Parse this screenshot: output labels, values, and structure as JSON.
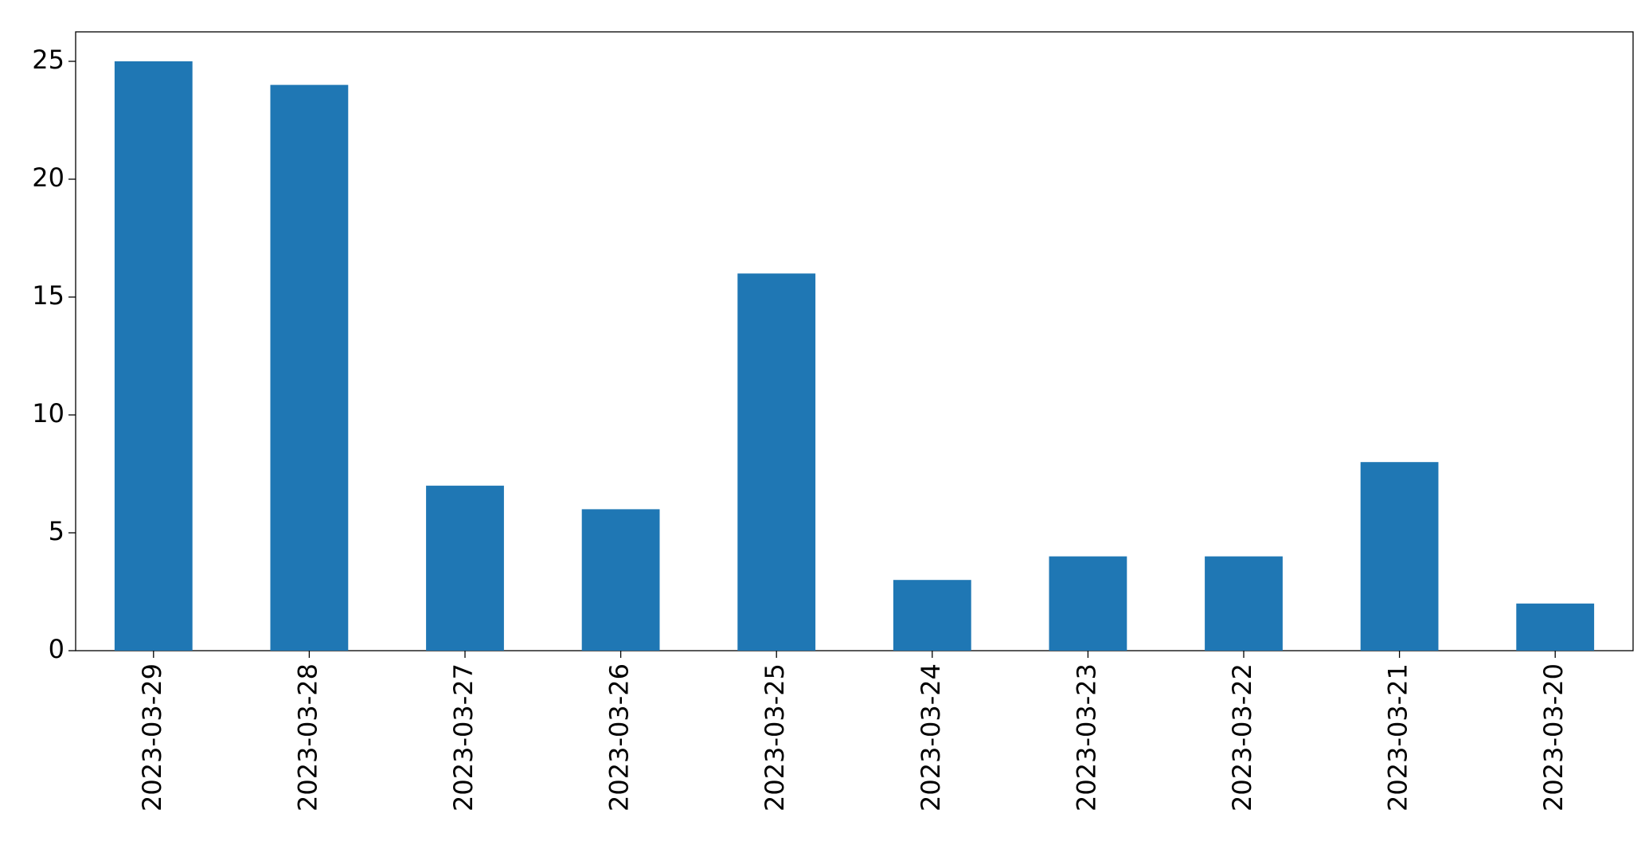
{
  "chart_data": {
    "type": "bar",
    "categories": [
      "2023-03-29",
      "2023-03-28",
      "2023-03-27",
      "2023-03-26",
      "2023-03-25",
      "2023-03-24",
      "2023-03-23",
      "2023-03-22",
      "2023-03-21",
      "2023-03-20"
    ],
    "values": [
      25,
      24,
      7,
      6,
      16,
      3,
      4,
      4,
      8,
      2
    ],
    "color": "#1f77b4",
    "ylim": [
      0,
      26.25
    ],
    "yticks": [
      0,
      5,
      10,
      15,
      20,
      25
    ],
    "grid": false
  }
}
